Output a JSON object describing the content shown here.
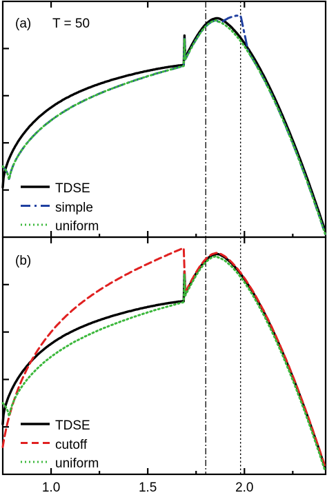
{
  "chart_data": [
    {
      "type": "line",
      "panel_label": "(a)",
      "annotation": "T = 50",
      "xlim": [
        0.75,
        2.42
      ],
      "ylim": [
        0,
        1.05
      ],
      "vlines": [
        {
          "x": 1.8,
          "style": "dashdot"
        },
        {
          "x": 1.98,
          "style": "dotted"
        }
      ],
      "legend_position": "lower-left",
      "series": [
        {
          "name": "TDSE",
          "color": "#000000",
          "style": "solid",
          "width": 3.4,
          "x": [],
          "y": []
        },
        {
          "name": "simple",
          "color": "#1f3fa0",
          "style": "dashdot",
          "width": 3.0,
          "x": [],
          "y": []
        },
        {
          "name": "uniform",
          "color": "#3cb83c",
          "style": "dotted",
          "width": 3.0,
          "x": [],
          "y": []
        }
      ]
    },
    {
      "type": "line",
      "panel_label": "(b)",
      "xlim": [
        0.75,
        2.42
      ],
      "ylim": [
        0,
        1.05
      ],
      "vlines": [
        {
          "x": 1.8,
          "style": "dashdot"
        },
        {
          "x": 1.98,
          "style": "dotted"
        }
      ],
      "legend_position": "lower-left",
      "xticks": [
        1.0,
        1.5,
        2.0
      ],
      "xticklabels": [
        "1.0",
        "1.5",
        "2.0"
      ],
      "series": [
        {
          "name": "TDSE",
          "color": "#000000",
          "style": "solid",
          "width": 3.4,
          "x": [],
          "y": []
        },
        {
          "name": "cutoff",
          "color": "#e02020",
          "style": "dashed",
          "width": 3.0,
          "x": [],
          "y": []
        },
        {
          "name": "uniform",
          "color": "#3cb83c",
          "style": "dotted",
          "width": 3.0,
          "x": [],
          "y": []
        }
      ]
    }
  ]
}
